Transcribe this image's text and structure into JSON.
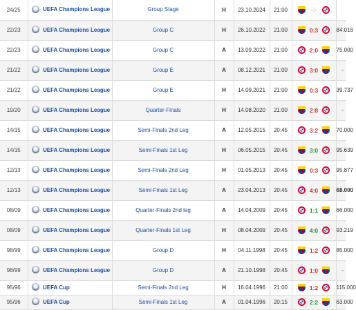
{
  "colors": {
    "link": "#1a4d9c",
    "loss": "#c0392b",
    "win": "#2a8c3a",
    "stripe": "#f4f4f4"
  },
  "matches": [
    {
      "season": "24/25",
      "competition": "UEFA Champions League",
      "round": "Group Stage",
      "venue": "H",
      "date": "23.10.2024",
      "time": "21:00",
      "home": "barca",
      "away": "bayern",
      "score": "-:-",
      "outcome": "none",
      "attendance": ""
    },
    {
      "season": "22/23",
      "competition": "UEFA Champions League",
      "round": "Group C",
      "venue": "H",
      "date": "26.10.2022",
      "time": "21:00",
      "home": "barca",
      "away": "bayern",
      "score": "0:3",
      "outcome": "loss",
      "attendance": "84.016"
    },
    {
      "season": "22/23",
      "competition": "UEFA Champions League",
      "round": "Group C",
      "venue": "A",
      "date": "13.09.2022",
      "time": "21:00",
      "home": "bayern",
      "away": "barca",
      "score": "2:0",
      "outcome": "loss",
      "attendance": "75.000"
    },
    {
      "season": "21/22",
      "competition": "UEFA Champions League",
      "round": "Group E",
      "venue": "A",
      "date": "08.12.2021",
      "time": "21:00",
      "home": "bayern",
      "away": "barca",
      "score": "3:0",
      "outcome": "loss",
      "attendance": "-"
    },
    {
      "season": "21/22",
      "competition": "UEFA Champions League",
      "round": "Group E",
      "venue": "H",
      "date": "14.09.2021",
      "time": "21:00",
      "home": "barca",
      "away": "bayern",
      "score": "0:3",
      "outcome": "loss",
      "attendance": "39.737"
    },
    {
      "season": "19/20",
      "competition": "UEFA Champions League",
      "round": "Quarter-Finals",
      "venue": "H",
      "date": "14.08.2020",
      "time": "21:00",
      "home": "barca",
      "away": "bayern",
      "score": "2:8",
      "outcome": "loss",
      "attendance": "-"
    },
    {
      "season": "14/15",
      "competition": "UEFA Champions League",
      "round": "Semi-Finals 2nd Leg",
      "venue": "A",
      "date": "12.05.2015",
      "time": "20:45",
      "home": "bayern",
      "away": "barca",
      "score": "3:2",
      "outcome": "loss",
      "attendance": "70.000"
    },
    {
      "season": "14/15",
      "competition": "UEFA Champions League",
      "round": "Semi-Finals 1st Leg",
      "venue": "H",
      "date": "06.05.2015",
      "time": "20:45",
      "home": "barca",
      "away": "bayern",
      "score": "3:0",
      "outcome": "win",
      "attendance": "95.639"
    },
    {
      "season": "12/13",
      "competition": "UEFA Champions League",
      "round": "Semi-Finals 2nd Leg",
      "venue": "H",
      "date": "01.05.2013",
      "time": "20:45",
      "home": "barca",
      "away": "bayern",
      "score": "0:3",
      "outcome": "loss",
      "attendance": "95.877"
    },
    {
      "season": "12/13",
      "competition": "UEFA Champions League",
      "round": "Semi-Finals 1st Leg",
      "venue": "A",
      "date": "23.04.2013",
      "time": "20:45",
      "home": "bayern",
      "away": "barca",
      "score": "4:0",
      "outcome": "loss",
      "attendance": "68.000",
      "attendance_bold": true
    },
    {
      "season": "08/09",
      "competition": "UEFA Champions League",
      "round": "Quarter-Finals 2nd leg",
      "venue": "A",
      "date": "14.04.2009",
      "time": "20:45",
      "home": "bayern",
      "away": "barca",
      "score": "1:1",
      "outcome": "draw",
      "attendance": "66.000"
    },
    {
      "season": "08/09",
      "competition": "UEFA Champions League",
      "round": "Quarter-Finals 1st Leg",
      "venue": "H",
      "date": "08.04.2009",
      "time": "20:45",
      "home": "barca",
      "away": "bayern",
      "score": "4:0",
      "outcome": "win",
      "attendance": "93.219"
    },
    {
      "season": "98/99",
      "competition": "UEFA Champions League",
      "round": "Group D",
      "venue": "H",
      "date": "04.11.1998",
      "time": "20:45",
      "home": "barca",
      "away": "bayern",
      "score": "1:2",
      "outcome": "loss",
      "attendance": "85.000"
    },
    {
      "season": "98/99",
      "competition": "UEFA Champions League",
      "round": "Group D",
      "venue": "A",
      "date": "21.10.1998",
      "time": "20:45",
      "home": "bayern",
      "away": "barca",
      "score": "1:0",
      "outcome": "loss",
      "attendance": "-"
    },
    {
      "season": "95/96",
      "competition": "UEFA Cup",
      "round": "Semi-Finals 2nd Leg",
      "venue": "H",
      "date": "16.04.1996",
      "time": "21:00",
      "home": "barca",
      "away": "bayern",
      "score": "1:2",
      "outcome": "loss",
      "attendance": "115.000"
    },
    {
      "season": "95/96",
      "competition": "UEFA Cup",
      "round": "Semi-Finals 1st Leg",
      "venue": "A",
      "date": "01.04.1996",
      "time": "20:15",
      "home": "bayern",
      "away": "barca",
      "score": "2:2",
      "outcome": "draw",
      "attendance": "63.000"
    }
  ]
}
